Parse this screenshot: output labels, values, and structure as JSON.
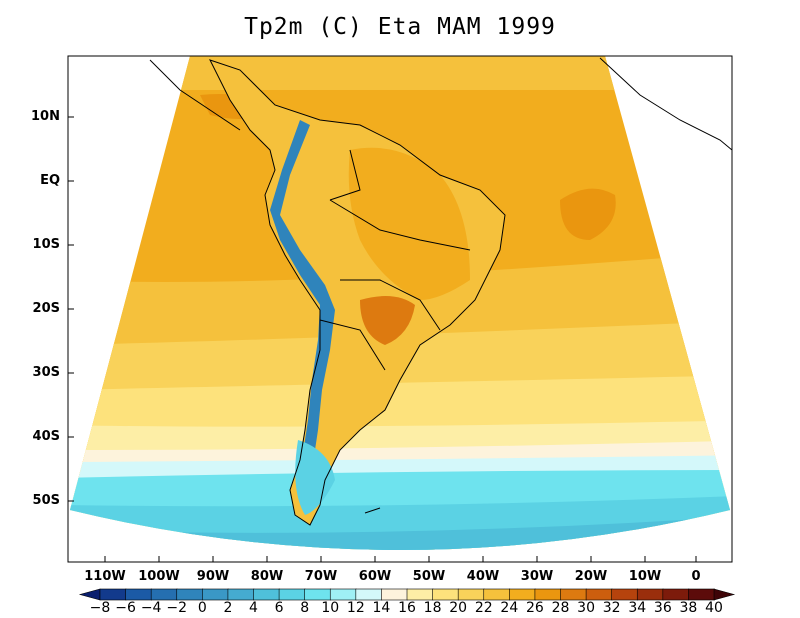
{
  "title": "Tp2m (C) Eta MAM 1999",
  "lat_labels": [
    "10N",
    "EQ",
    "10S",
    "20S",
    "30S",
    "40S",
    "50S"
  ],
  "lon_labels": [
    "110W",
    "100W",
    "90W",
    "80W",
    "70W",
    "60W",
    "50W",
    "40W",
    "30W",
    "20W",
    "10W",
    "0"
  ],
  "colorbar": {
    "labels": [
      "−8",
      "−6",
      "−4",
      "−2",
      "0",
      "2",
      "4",
      "6",
      "8",
      "10",
      "12",
      "14",
      "16",
      "18",
      "20",
      "22",
      "24",
      "26",
      "28",
      "30",
      "32",
      "34",
      "36",
      "38",
      "40"
    ],
    "colors": [
      "#0a1e6e",
      "#123a8c",
      "#1b5aa6",
      "#256fb0",
      "#2f84bb",
      "#3a98c6",
      "#45abd0",
      "#4fc0da",
      "#5bd2e4",
      "#6ee3ee",
      "#9ff0f5",
      "#d4f8fa",
      "#fdf3dc",
      "#fdeea6",
      "#fde27c",
      "#f9d25a",
      "#f5c13c",
      "#f2ad1e",
      "#ea960f",
      "#dd7a10",
      "#cc5e0e",
      "#b6430d",
      "#9a2e0c",
      "#7d1b0b",
      "#5c0b0a",
      "#3e0407"
    ]
  },
  "field_colors": {
    "ocean_warm": "#f2ad1e",
    "ocean_hot": "#ea960f",
    "band_22": "#f5c13c",
    "band_20": "#f9d25a",
    "band_18": "#fde27c",
    "band_16": "#fdeea6",
    "band_14": "#fdf3dc",
    "band_12": "#d4f8fa",
    "band_10": "#6ee3ee",
    "band_8": "#5bd2e4",
    "band_6": "#4fc0da",
    "andes_cold": "#2f84bb",
    "land_hot": "#dd7a10"
  }
}
